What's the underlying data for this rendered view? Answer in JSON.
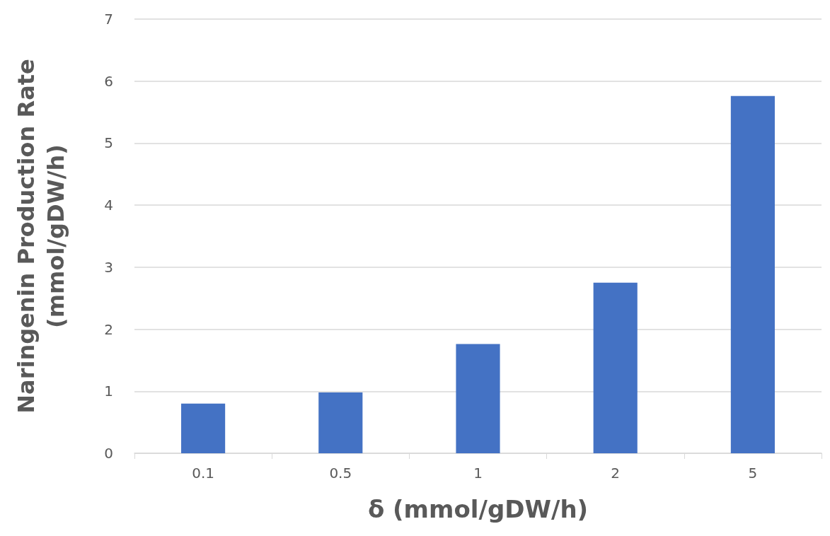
{
  "chart_data": {
    "type": "bar",
    "xlabel": "δ (mmol/gDW/h)",
    "ylabel": "Naringenin Production Rate\n(mmol/gDW/h)",
    "categories": [
      "0.1",
      "0.5",
      "1",
      "2",
      "5"
    ],
    "values": [
      0.8,
      0.98,
      1.76,
      2.75,
      5.76
    ],
    "color": "#4472c4",
    "ylim": [
      0,
      7
    ],
    "yticks": [
      0,
      1,
      2,
      3,
      4,
      5,
      6,
      7
    ],
    "grid": "y"
  }
}
